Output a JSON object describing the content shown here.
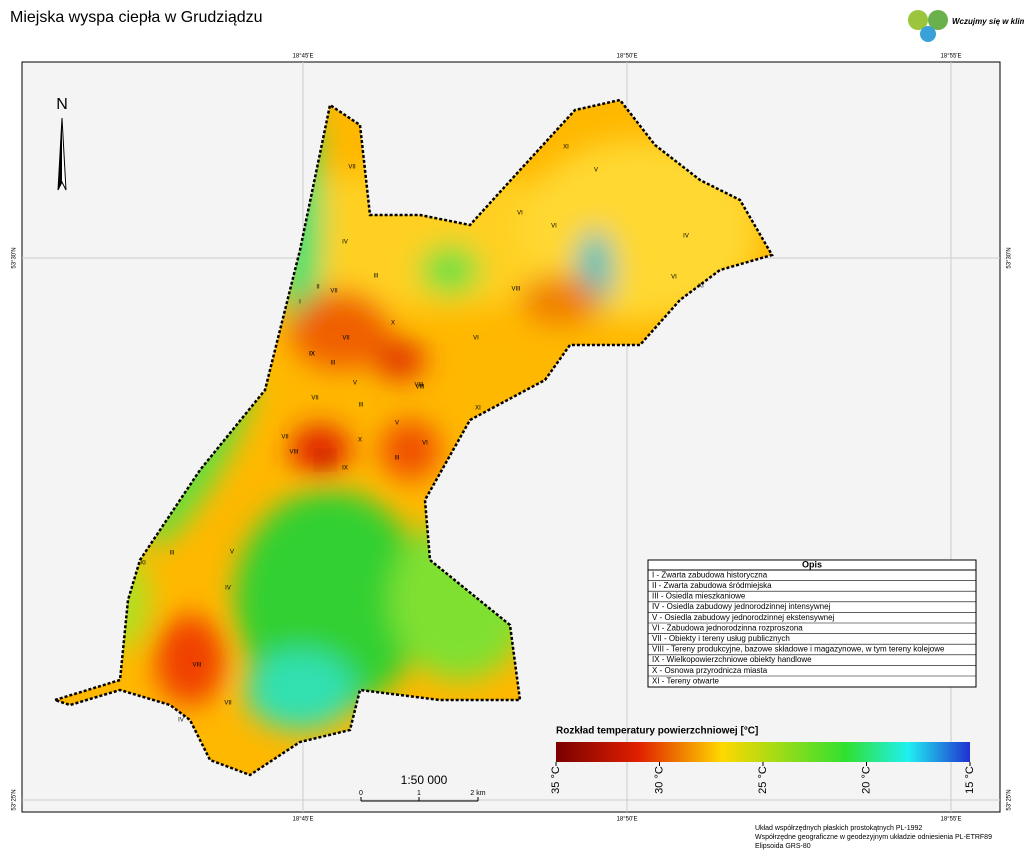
{
  "header": {
    "title": "Miejska wyspa ciepła w Grudziądzu",
    "logo_text": "Wczujmy się w klimat!"
  },
  "coordinates": {
    "longitude": [
      "18°45'E",
      "18°50'E",
      "18°55'E"
    ],
    "latitude": [
      "53°30'N",
      "53°25'N"
    ]
  },
  "north": "N",
  "legend": {
    "title": "Opis",
    "rows": [
      "I - Zwarta zabudowa historyczna",
      "II - Zwarta zabudowa śródmiejska",
      "III - Osiedla mieszkaniowe",
      "IV - Osiedla zabudowy jednorodzinnej intensywnej",
      "V - Osiedla zabudowy jednorodzinnej ekstensywnej",
      "VI - Zabudowa jednorodzinna rozproszona",
      "VII - Obiekty i tereny usług publicznych",
      "VIII - Tereny produkcyjne, bazowe składowe i magazynowe, w tym tereny kolejowe",
      "IX - Wielkopowierzchniowe obiekty handlowe",
      "X - Osnowa przyrodnicza miasta",
      "XI - Tereny otwarte"
    ]
  },
  "colorbar": {
    "title": "Rozkład temperatury powierzchniowej [°C]",
    "lim": [
      35,
      15
    ],
    "ticks": [
      {
        "value": 35,
        "label": "35 °C"
      },
      {
        "value": 30,
        "label": "30 °C"
      },
      {
        "value": 25,
        "label": "25 °C"
      },
      {
        "value": 20,
        "label": "20 °C"
      },
      {
        "value": 15,
        "label": "15 °C"
      }
    ]
  },
  "scale": {
    "ratio": "1:50 000",
    "labels": [
      "0",
      "1",
      "2 km"
    ]
  },
  "zone_labels": [
    "VII",
    "II",
    "IV",
    "III",
    "I",
    "VII",
    "IX",
    "III",
    "X",
    "VII",
    "V",
    "VIII",
    "VI",
    "VII",
    "VIII",
    "III",
    "IX",
    "X",
    "XI",
    "V",
    "VI",
    "VII",
    "III",
    "VIII",
    "XI",
    "III",
    "IV",
    "VIII",
    "VII",
    "IV",
    "XI",
    "VI",
    "V",
    "IV",
    "VI",
    "XI",
    "VI",
    "VIII",
    "IX",
    "V"
  ],
  "footnote": [
    "Układ współrzędnych płaskich prostokątnych PL-1992",
    "Współrzędne geograficzne w geodezyjnym układzie odniesienia PL-ETRF89",
    "Elipsoida GRS-80"
  ]
}
